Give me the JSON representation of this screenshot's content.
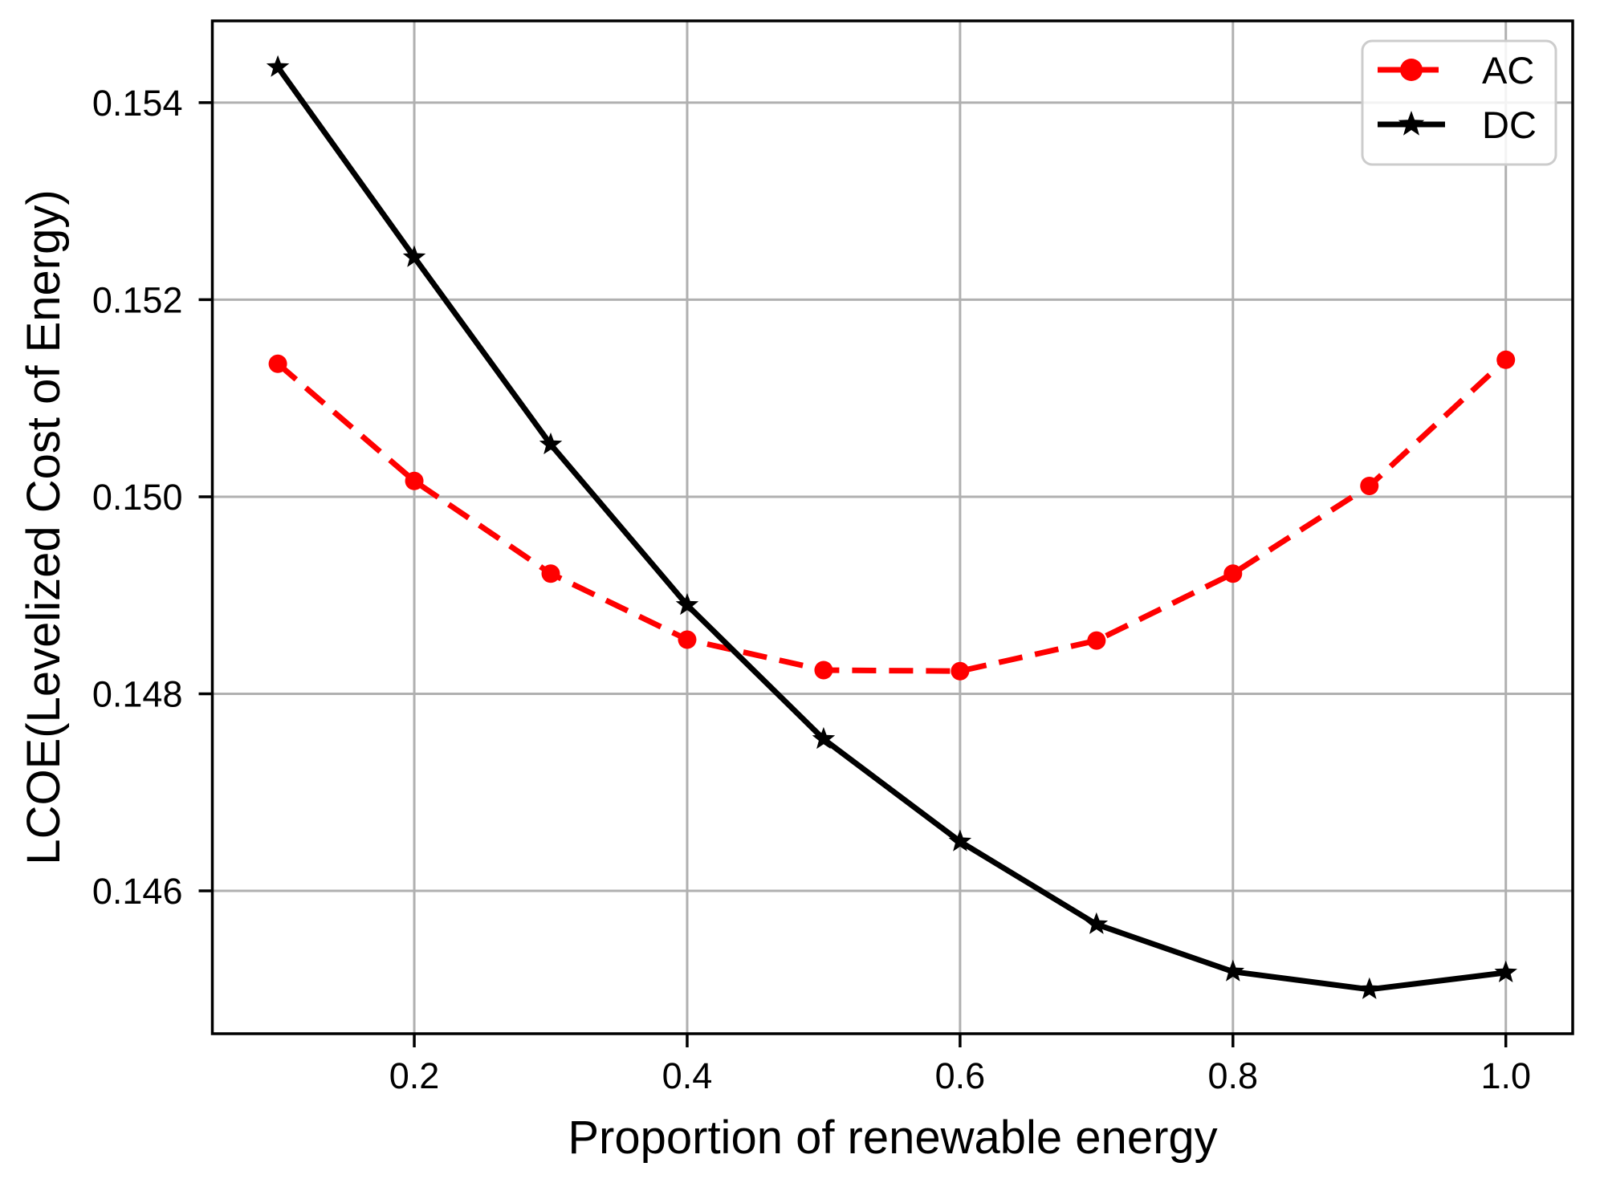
{
  "chart_data": {
    "type": "line",
    "title": "",
    "xlabel": "Proportion of renewable energy",
    "ylabel": "LCOE(Levelized Cost of Energy)",
    "x": [
      0.1,
      0.2,
      0.3,
      0.4,
      0.5,
      0.6,
      0.7,
      0.8,
      0.9,
      1.0
    ],
    "series": [
      {
        "name": "AC",
        "color": "#ff0000",
        "linestyle": "dashed",
        "marker": "circle",
        "values": [
          0.15135,
          0.15016,
          0.14922,
          0.14855,
          0.14824,
          0.14823,
          0.14854,
          0.14922,
          0.15011,
          0.15139
        ]
      },
      {
        "name": "DC",
        "color": "#000000",
        "linestyle": "solid",
        "marker": "star",
        "values": [
          0.15436,
          0.15243,
          0.15053,
          0.1489,
          0.14754,
          0.1465,
          0.14566,
          0.14518,
          0.145,
          0.14517
        ]
      }
    ],
    "xlim": [
      0.052,
      1.049
    ],
    "ylim": [
      0.14455,
      0.15483
    ],
    "xticks": {
      "values": [
        0.2,
        0.4,
        0.6,
        0.8,
        1.0
      ],
      "labels": [
        "0.2",
        "0.4",
        "0.6",
        "0.8",
        "1.0"
      ]
    },
    "yticks": {
      "values": [
        0.146,
        0.148,
        0.15,
        0.152,
        0.154
      ],
      "labels": [
        "0.146",
        "0.148",
        "0.150",
        "0.152",
        "0.154"
      ]
    },
    "grid": true,
    "grid_color": "#b0b0b0",
    "spine_color": "#000000",
    "legend": {
      "position": "upper right"
    }
  }
}
